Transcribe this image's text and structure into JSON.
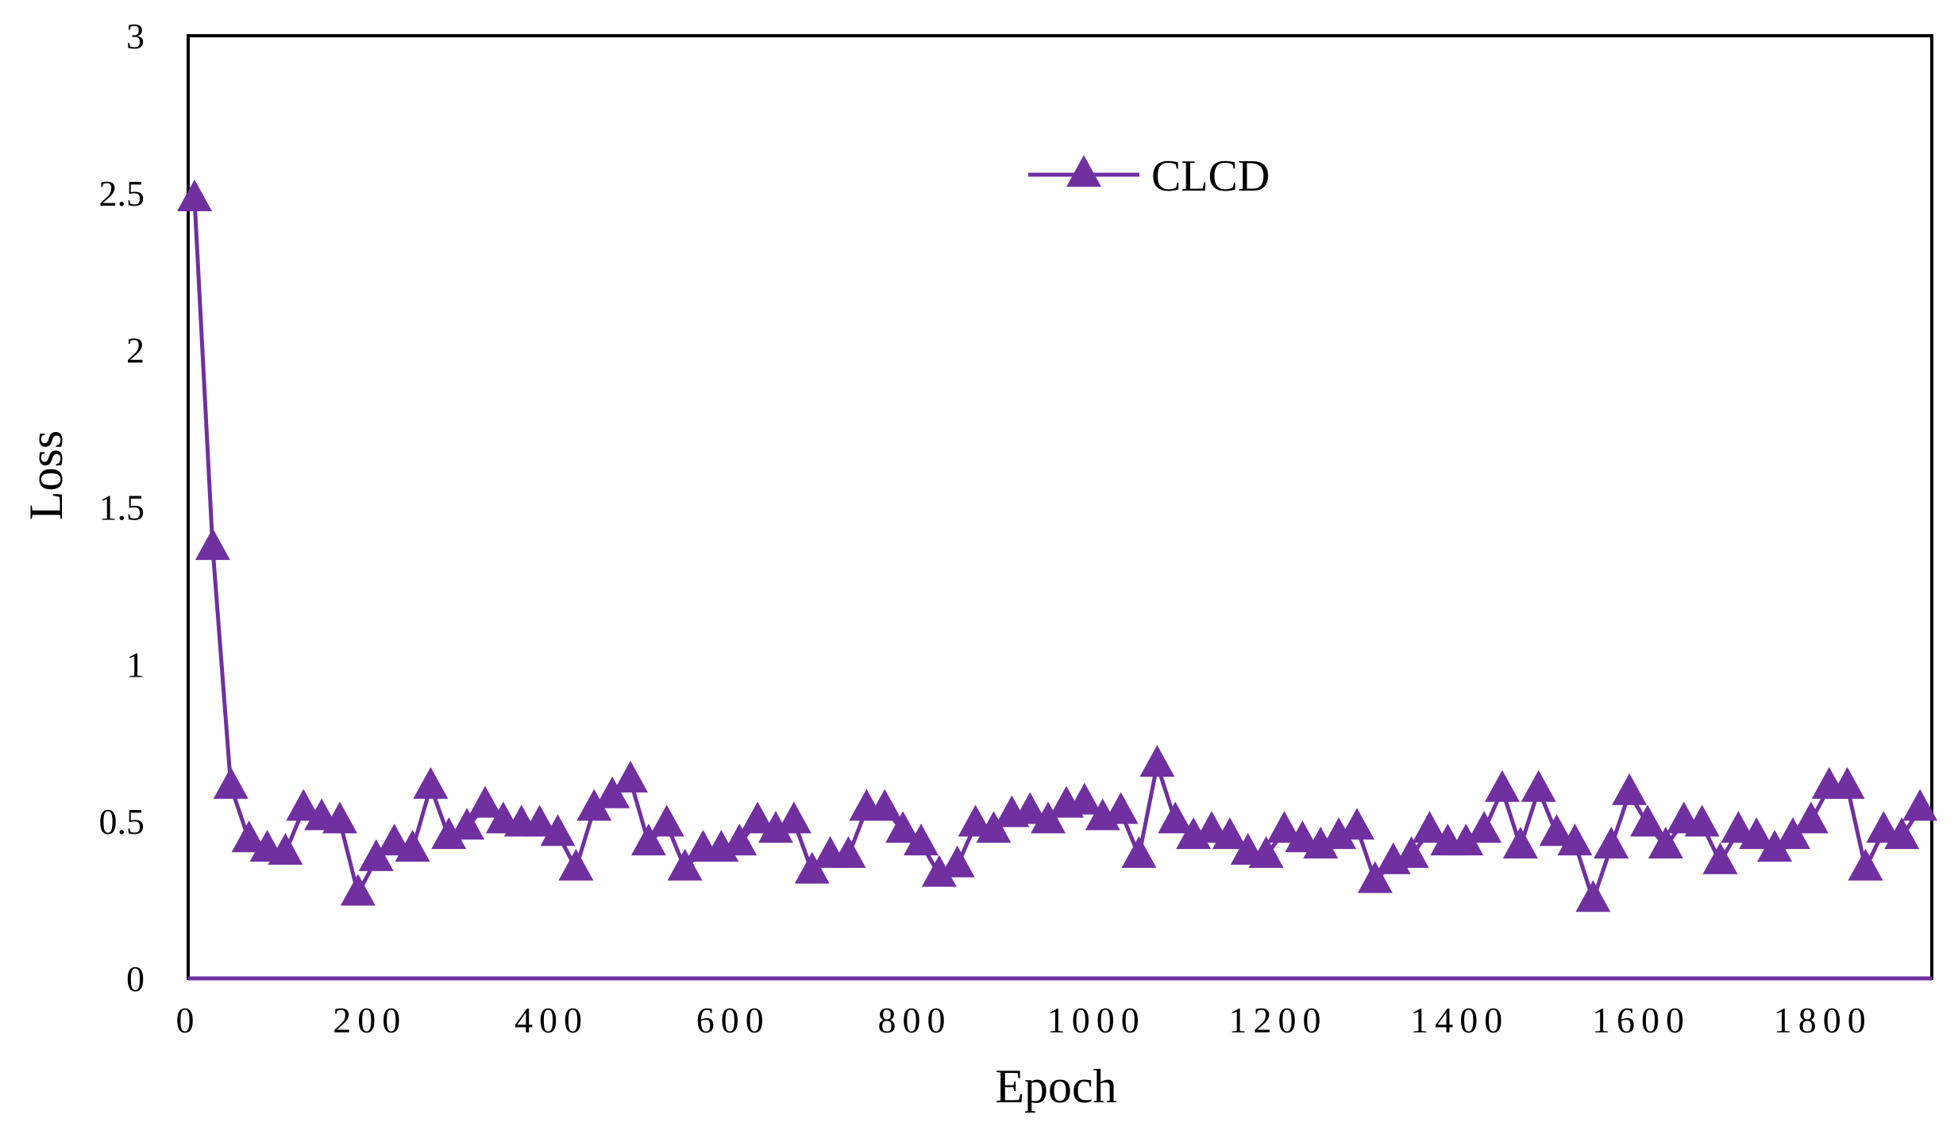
{
  "chart_data": {
    "type": "line",
    "xlabel": "Epoch",
    "ylabel": "Loss",
    "xlim": [
      0,
      1920
    ],
    "ylim": [
      0,
      3
    ],
    "x_ticks": [
      "0",
      "200",
      "400",
      "600",
      "800",
      "1000",
      "1200",
      "1400",
      "1600",
      "1800"
    ],
    "y_ticks": [
      "0",
      "0.5",
      "1",
      "1.5",
      "2",
      "2.5",
      "3"
    ],
    "grid": false,
    "legend_position": "top-center",
    "series": [
      {
        "name": "CLCD",
        "color": "#7030A0",
        "marker": "triangle",
        "x": [
          0,
          20,
          40,
          60,
          80,
          100,
          120,
          140,
          160,
          180,
          200,
          220,
          240,
          260,
          280,
          300,
          320,
          340,
          360,
          380,
          400,
          420,
          440,
          460,
          480,
          500,
          520,
          540,
          560,
          580,
          600,
          620,
          640,
          660,
          680,
          700,
          720,
          740,
          760,
          780,
          800,
          820,
          840,
          860,
          880,
          900,
          920,
          940,
          960,
          980,
          1000,
          1020,
          1040,
          1060,
          1080,
          1100,
          1120,
          1140,
          1160,
          1180,
          1200,
          1220,
          1240,
          1260,
          1280,
          1300,
          1320,
          1340,
          1360,
          1380,
          1400,
          1420,
          1440,
          1460,
          1480,
          1500,
          1520,
          1540,
          1560,
          1580,
          1600,
          1620,
          1640,
          1660,
          1680,
          1700,
          1720,
          1740,
          1760,
          1780,
          1800,
          1820,
          1840,
          1860,
          1880,
          1900
        ],
        "values": [
          2.48,
          1.37,
          0.61,
          0.44,
          0.41,
          0.4,
          0.54,
          0.51,
          0.5,
          0.27,
          0.38,
          0.43,
          0.41,
          0.61,
          0.45,
          0.48,
          0.55,
          0.5,
          0.49,
          0.49,
          0.46,
          0.35,
          0.54,
          0.58,
          0.63,
          0.43,
          0.49,
          0.35,
          0.41,
          0.41,
          0.43,
          0.5,
          0.47,
          0.5,
          0.34,
          0.39,
          0.39,
          0.54,
          0.54,
          0.47,
          0.43,
          0.33,
          0.36,
          0.49,
          0.47,
          0.52,
          0.53,
          0.5,
          0.55,
          0.56,
          0.51,
          0.53,
          0.39,
          0.68,
          0.5,
          0.45,
          0.47,
          0.45,
          0.4,
          0.39,
          0.47,
          0.44,
          0.42,
          0.45,
          0.48,
          0.31,
          0.37,
          0.39,
          0.47,
          0.43,
          0.43,
          0.47,
          0.6,
          0.42,
          0.6,
          0.46,
          0.43,
          0.25,
          0.42,
          0.59,
          0.49,
          0.42,
          0.5,
          0.49,
          0.37,
          0.47,
          0.45,
          0.41,
          0.45,
          0.5,
          0.61,
          0.61,
          0.35,
          0.47,
          0.45,
          0.54
        ]
      }
    ]
  }
}
